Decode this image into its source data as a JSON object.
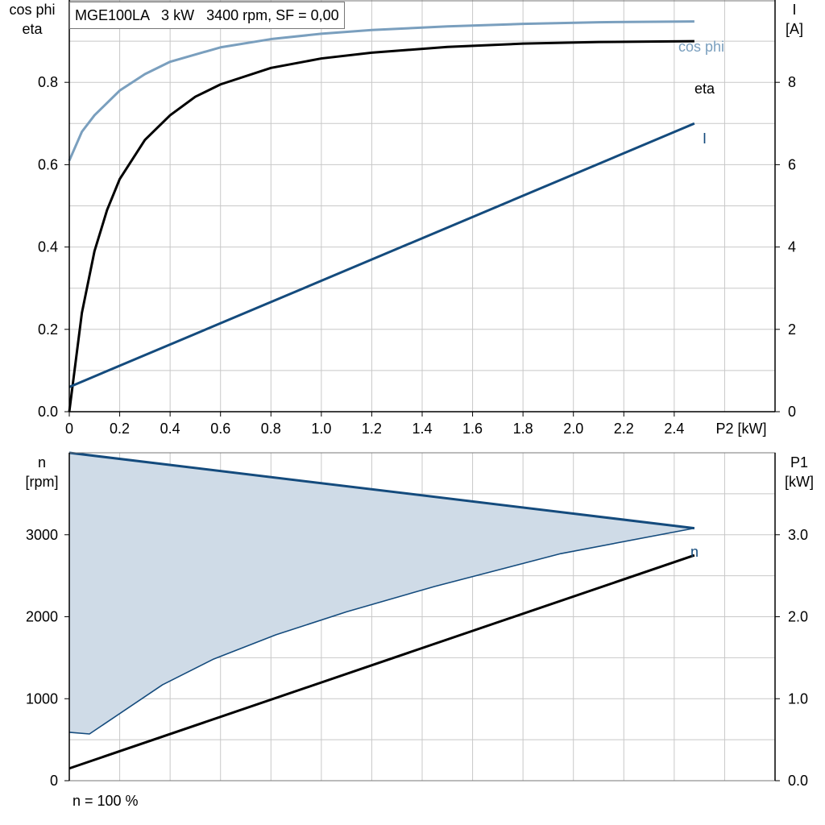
{
  "info_box": "MGE100LA   3 kW   3400 rpm, SF = 0,00",
  "footnote": "n = 100 %",
  "colors": {
    "cos_phi": "#7a9fbe",
    "eta": "#000000",
    "current": "#144b7d",
    "speed": "#144b7d",
    "speed_band_fill": "#cfdbe7",
    "p1": "#000000",
    "grid": "#c8c8c8"
  },
  "chart_data": [
    {
      "type": "line",
      "left_axis_label_line1": "cos phi",
      "left_axis_label_line2": "eta",
      "right_axis_label_line1": "I",
      "right_axis_label_line2": "[A]",
      "xlabel": "P2 [kW]",
      "xlim": [
        0,
        2.8
      ],
      "ylim_left": [
        0,
        1.0
      ],
      "ylim_right": [
        0,
        10
      ],
      "x_ticks": [
        "0",
        "0.2",
        "0.4",
        "0.6",
        "0.8",
        "1.0",
        "1.2",
        "1.4",
        "1.6",
        "1.8",
        "2.0",
        "2.2",
        "2.4"
      ],
      "y_left_ticks": [
        "0.0",
        "0.2",
        "0.4",
        "0.6",
        "0.8"
      ],
      "y_right_ticks": [
        "0",
        "2",
        "4",
        "6",
        "8"
      ],
      "grid": true,
      "series": [
        {
          "name": "cos phi",
          "axis": "left",
          "color": "#7a9fbe",
          "x": [
            0,
            0.05,
            0.1,
            0.2,
            0.3,
            0.4,
            0.6,
            0.8,
            1.0,
            1.2,
            1.5,
            1.8,
            2.1,
            2.48
          ],
          "y": [
            0.61,
            0.68,
            0.72,
            0.78,
            0.82,
            0.85,
            0.885,
            0.905,
            0.918,
            0.927,
            0.936,
            0.942,
            0.946,
            0.948
          ]
        },
        {
          "name": "eta",
          "axis": "left",
          "color": "#000000",
          "x": [
            0,
            0.05,
            0.1,
            0.15,
            0.2,
            0.3,
            0.4,
            0.5,
            0.6,
            0.8,
            1.0,
            1.2,
            1.5,
            1.8,
            2.1,
            2.48
          ],
          "y": [
            0.0,
            0.24,
            0.39,
            0.49,
            0.565,
            0.66,
            0.72,
            0.765,
            0.795,
            0.835,
            0.858,
            0.872,
            0.886,
            0.894,
            0.898,
            0.9
          ]
        },
        {
          "name": "I",
          "axis": "right",
          "color": "#144b7d",
          "x": [
            0,
            2.48
          ],
          "y": [
            0.6,
            7.0
          ]
        }
      ]
    },
    {
      "type": "area",
      "left_axis_label_line1": "n",
      "left_axis_label_line2": "[rpm]",
      "right_axis_label_line1": "P1",
      "right_axis_label_line2": "[kW]",
      "xlim": [
        0,
        2.8
      ],
      "ylim_left": [
        0,
        4000
      ],
      "ylim_right": [
        0,
        4.0
      ],
      "y_left_ticks": [
        "0",
        "1000",
        "2000",
        "3000"
      ],
      "y_right_ticks": [
        "0.0",
        "1.0",
        "2.0",
        "3.0"
      ],
      "grid": true,
      "series": [
        {
          "name": "n",
          "axis": "left",
          "color": "#144b7d",
          "role": "max_speed",
          "x": [
            0,
            2.48
          ],
          "y": [
            4000,
            3080
          ]
        },
        {
          "name": "",
          "axis": "left",
          "color": "#144b7d",
          "role": "min_speed",
          "x": [
            0,
            0.08,
            0.37,
            0.57,
            0.82,
            1.1,
            1.45,
            1.95,
            2.48
          ],
          "y": [
            590,
            570,
            1170,
            1480,
            1780,
            2060,
            2370,
            2770,
            3080
          ]
        },
        {
          "name": "",
          "axis": "right",
          "color": "#000000",
          "role": "p1",
          "x": [
            0,
            2.48
          ],
          "y": [
            0.15,
            2.75
          ]
        }
      ]
    }
  ]
}
